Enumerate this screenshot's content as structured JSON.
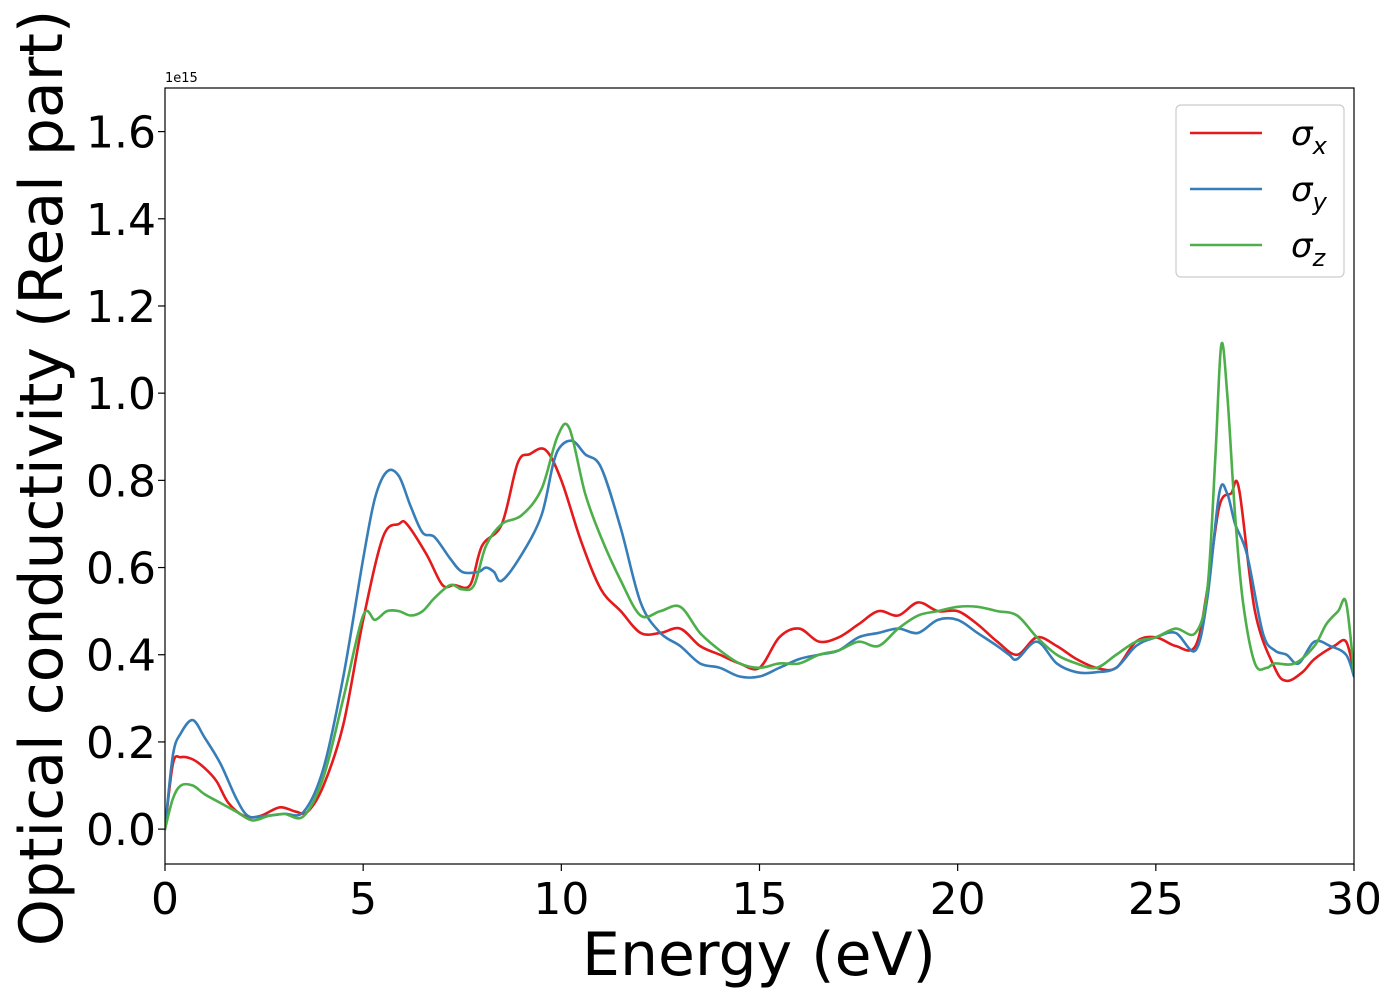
{
  "chart_data": {
    "type": "line",
    "xlabel": "Energy (eV)",
    "ylabel": "Optical conductivity (Real part)",
    "y_offset_label": "1e15",
    "xlim": [
      0,
      30
    ],
    "ylim": [
      -0.08,
      1.7
    ],
    "x_ticks": [
      0,
      5,
      10,
      15,
      20,
      25,
      30
    ],
    "x_tick_labels": [
      "0",
      "5",
      "10",
      "15",
      "20",
      "25",
      "30"
    ],
    "y_ticks": [
      0.0,
      0.2,
      0.4,
      0.6,
      0.8,
      1.0,
      1.2,
      1.4,
      1.6
    ],
    "y_tick_labels": [
      "0.0",
      "0.2",
      "0.4",
      "0.6",
      "0.8",
      "1.0",
      "1.2",
      "1.4",
      "1.6"
    ],
    "grid": false,
    "legend_position": "top-right",
    "series": [
      {
        "name": "σx",
        "legend_main": "σ",
        "legend_sub": "x",
        "color": "#e41a1c",
        "x": [
          0,
          0.2,
          0.4,
          0.7,
          1.0,
          1.3,
          1.6,
          2.0,
          2.4,
          2.9,
          3.3,
          3.6,
          4.0,
          4.5,
          5.0,
          5.5,
          5.9,
          6.1,
          6.6,
          7.0,
          7.3,
          7.7,
          8.0,
          8.5,
          8.9,
          9.2,
          9.6,
          10.0,
          10.5,
          11.0,
          11.5,
          12.0,
          12.5,
          13.0,
          13.5,
          14.0,
          14.5,
          15.0,
          15.5,
          16.0,
          16.5,
          17.0,
          17.5,
          18.0,
          18.5,
          19.0,
          19.5,
          20.0,
          20.5,
          21.0,
          21.5,
          22.0,
          22.5,
          23.0,
          23.5,
          24.0,
          24.5,
          25.0,
          25.5,
          26.0,
          26.3,
          26.6,
          26.9,
          27.1,
          27.5,
          28.0,
          28.3,
          28.7,
          29.0,
          29.5,
          29.8,
          30.0
        ],
        "values": [
          0.0,
          0.15,
          0.165,
          0.16,
          0.14,
          0.11,
          0.06,
          0.03,
          0.03,
          0.05,
          0.04,
          0.04,
          0.1,
          0.24,
          0.48,
          0.67,
          0.7,
          0.7,
          0.63,
          0.56,
          0.56,
          0.56,
          0.65,
          0.7,
          0.84,
          0.86,
          0.87,
          0.8,
          0.66,
          0.55,
          0.5,
          0.45,
          0.45,
          0.46,
          0.42,
          0.4,
          0.38,
          0.37,
          0.44,
          0.46,
          0.43,
          0.44,
          0.47,
          0.5,
          0.49,
          0.52,
          0.5,
          0.5,
          0.47,
          0.43,
          0.4,
          0.44,
          0.42,
          0.39,
          0.37,
          0.37,
          0.43,
          0.44,
          0.42,
          0.42,
          0.55,
          0.74,
          0.77,
          0.78,
          0.5,
          0.37,
          0.34,
          0.36,
          0.39,
          0.42,
          0.43,
          0.36
        ]
      },
      {
        "name": "σy",
        "legend_main": "σ",
        "legend_sub": "y",
        "color": "#377eb8",
        "x": [
          0,
          0.2,
          0.4,
          0.7,
          1.0,
          1.4,
          1.8,
          2.1,
          2.5,
          3.0,
          3.5,
          4.0,
          4.5,
          5.0,
          5.3,
          5.6,
          5.9,
          6.2,
          6.5,
          6.8,
          7.2,
          7.5,
          7.9,
          8.1,
          8.3,
          8.5,
          9.0,
          9.5,
          9.8,
          10.0,
          10.3,
          10.6,
          11.0,
          11.5,
          12.0,
          12.5,
          13.0,
          13.5,
          14.0,
          14.5,
          15.0,
          15.5,
          16.0,
          16.5,
          17.0,
          17.5,
          18.0,
          18.5,
          19.0,
          19.5,
          20.0,
          20.5,
          21.0,
          21.3,
          21.5,
          22.0,
          22.5,
          23.0,
          23.5,
          24.0,
          24.5,
          25.0,
          25.5,
          26.0,
          26.3,
          26.6,
          26.8,
          27.0,
          27.3,
          27.7,
          28.0,
          28.3,
          28.6,
          29.0,
          29.4,
          29.8,
          30.0
        ],
        "values": [
          0.0,
          0.17,
          0.22,
          0.25,
          0.21,
          0.15,
          0.07,
          0.03,
          0.03,
          0.035,
          0.04,
          0.14,
          0.35,
          0.62,
          0.76,
          0.82,
          0.81,
          0.74,
          0.68,
          0.67,
          0.62,
          0.59,
          0.59,
          0.6,
          0.59,
          0.57,
          0.63,
          0.72,
          0.84,
          0.88,
          0.89,
          0.86,
          0.83,
          0.69,
          0.52,
          0.45,
          0.42,
          0.38,
          0.37,
          0.35,
          0.35,
          0.37,
          0.39,
          0.4,
          0.41,
          0.44,
          0.45,
          0.46,
          0.45,
          0.48,
          0.48,
          0.45,
          0.42,
          0.4,
          0.39,
          0.43,
          0.38,
          0.36,
          0.36,
          0.37,
          0.42,
          0.44,
          0.45,
          0.41,
          0.53,
          0.77,
          0.77,
          0.7,
          0.63,
          0.45,
          0.41,
          0.4,
          0.38,
          0.43,
          0.42,
          0.4,
          0.35
        ]
      },
      {
        "name": "σz",
        "legend_main": "σ",
        "legend_sub": "z",
        "color": "#4daf4a",
        "x": [
          0,
          0.2,
          0.4,
          0.7,
          1.0,
          1.4,
          1.8,
          2.2,
          2.6,
          3.0,
          3.5,
          4.0,
          4.5,
          5.0,
          5.3,
          5.6,
          5.9,
          6.2,
          6.5,
          6.8,
          7.2,
          7.5,
          7.8,
          8.1,
          8.5,
          9.0,
          9.5,
          9.9,
          10.2,
          10.6,
          11.0,
          11.5,
          12.0,
          12.5,
          13.0,
          13.5,
          14.0,
          14.5,
          15.0,
          15.5,
          16.0,
          16.5,
          17.0,
          17.5,
          18.0,
          18.5,
          19.0,
          19.5,
          20.0,
          20.5,
          21.0,
          21.5,
          22.0,
          22.5,
          23.0,
          23.5,
          24.0,
          24.5,
          25.0,
          25.5,
          26.0,
          26.3,
          26.5,
          26.65,
          26.8,
          27.0,
          27.2,
          27.5,
          27.8,
          28.0,
          28.5,
          29.0,
          29.3,
          29.6,
          29.8,
          30.0
        ],
        "values": [
          0.0,
          0.07,
          0.1,
          0.1,
          0.08,
          0.06,
          0.04,
          0.02,
          0.03,
          0.035,
          0.03,
          0.12,
          0.3,
          0.49,
          0.48,
          0.5,
          0.5,
          0.49,
          0.5,
          0.53,
          0.56,
          0.55,
          0.56,
          0.65,
          0.7,
          0.72,
          0.78,
          0.9,
          0.92,
          0.77,
          0.67,
          0.57,
          0.49,
          0.5,
          0.51,
          0.45,
          0.41,
          0.38,
          0.37,
          0.38,
          0.38,
          0.4,
          0.41,
          0.43,
          0.42,
          0.46,
          0.49,
          0.5,
          0.51,
          0.51,
          0.5,
          0.49,
          0.44,
          0.4,
          0.38,
          0.37,
          0.4,
          0.43,
          0.44,
          0.46,
          0.45,
          0.55,
          0.85,
          1.11,
          1.0,
          0.72,
          0.52,
          0.38,
          0.37,
          0.38,
          0.38,
          0.42,
          0.47,
          0.5,
          0.52,
          0.36
        ]
      }
    ]
  }
}
